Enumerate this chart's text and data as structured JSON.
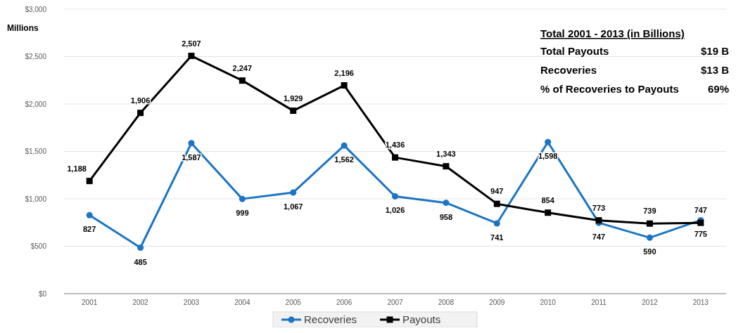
{
  "chart_data": {
    "type": "line",
    "ylabel": "Millions",
    "categories": [
      "2001",
      "2002",
      "2003",
      "2004",
      "2005",
      "2006",
      "2007",
      "2008",
      "2009",
      "2010",
      "2011",
      "2012",
      "2013"
    ],
    "series": [
      {
        "name": "Recoveries",
        "color": "#1b75c2",
        "marker": "circle",
        "values": [
          827,
          485,
          1587,
          999,
          1067,
          1562,
          1026,
          958,
          741,
          1598,
          747,
          590,
          775
        ],
        "value_labels": [
          "827",
          "485",
          "1,587",
          "999",
          "1,067",
          "1,562",
          "1,026",
          "958",
          "741",
          "1,598",
          "747",
          "590",
          "775"
        ]
      },
      {
        "name": "Payouts",
        "color": "#000000",
        "marker": "square",
        "values": [
          1188,
          1906,
          2507,
          2247,
          1929,
          2196,
          1436,
          1343,
          947,
          854,
          773,
          739,
          747
        ],
        "value_labels": [
          "1,188",
          "1,906",
          "2,507",
          "2,247",
          "1,929",
          "2,196",
          "1,436",
          "1,343",
          "947",
          "854",
          "773",
          "739",
          "747"
        ]
      }
    ],
    "ylim": [
      0,
      3000
    ],
    "yticks": [
      {
        "value": 0,
        "label": "$0"
      },
      {
        "value": 500,
        "label": "$500"
      },
      {
        "value": 1000,
        "label": "$1,000"
      },
      {
        "value": 1500,
        "label": "$1,500"
      },
      {
        "value": 2000,
        "label": "$2,000"
      },
      {
        "value": 2500,
        "label": "$2,500"
      },
      {
        "value": 3000,
        "label": "$3,000"
      }
    ],
    "grid": "y",
    "legend": "bottom",
    "annotations": [
      "Total 2001 - 2013 (in Billions)",
      "Total Payouts",
      "$19 B",
      "Recoveries",
      "$13 B",
      "% of Recoveries to Payouts",
      "69%"
    ]
  }
}
